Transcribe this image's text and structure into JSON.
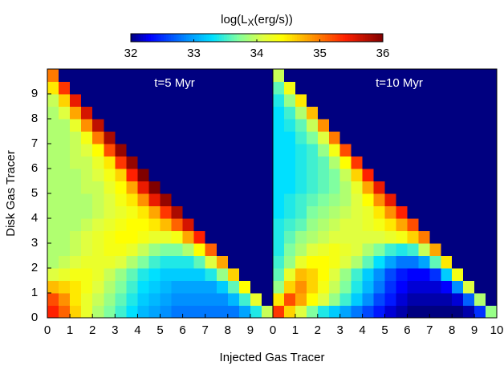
{
  "colorbar": {
    "label": [
      "log(L",
      "X",
      "(erg/s))"
    ],
    "clim": [
      32,
      36
    ],
    "ticks": [
      32,
      33,
      34,
      35,
      36
    ],
    "colorscale": [
      [
        32.0,
        "#000080"
      ],
      [
        32.3,
        "#0000ff"
      ],
      [
        32.9,
        "#0090ff"
      ],
      [
        33.3,
        "#00e0ff"
      ],
      [
        33.7,
        "#80ffa0"
      ],
      [
        34.1,
        "#e0ff40"
      ],
      [
        34.4,
        "#ffff00"
      ],
      [
        34.9,
        "#ff9000"
      ],
      [
        35.4,
        "#ff2000"
      ],
      [
        36.0,
        "#800000"
      ]
    ]
  },
  "xlabel": "Injected Gas Tracer",
  "ylabel": "Disk Gas Tracer",
  "chart_data": [
    {
      "type": "heatmap",
      "title": "t=5 Myr",
      "xlim": [
        0,
        10
      ],
      "ylim": [
        0,
        10
      ],
      "xticks": [
        0,
        1,
        2,
        3,
        4,
        5,
        6,
        7,
        8,
        9
      ],
      "yticks": [
        0,
        1,
        2,
        3,
        4,
        5,
        6,
        7,
        8,
        9
      ],
      "z": [
        [
          35.4,
          35.1,
          34.6,
          34.2,
          33.9,
          33.7,
          33.5,
          33.3,
          33.1,
          33.0,
          32.9,
          32.8,
          32.8,
          32.8,
          32.8,
          32.8,
          32.8,
          33.0,
          33.4,
          34.0
        ],
        [
          35.2,
          34.9,
          34.5,
          34.2,
          34.0,
          33.8,
          33.6,
          33.4,
          33.2,
          33.1,
          33.0,
          32.9,
          32.9,
          32.9,
          32.9,
          32.9,
          33.1,
          33.5,
          34.2,
          32
        ],
        [
          34.7,
          34.6,
          34.5,
          34.3,
          34.1,
          33.9,
          33.7,
          33.5,
          33.3,
          33.2,
          33.1,
          33.0,
          33.0,
          33.0,
          33.0,
          33.2,
          33.6,
          34.4,
          32,
          32
        ],
        [
          34.1,
          34.2,
          34.3,
          34.3,
          34.2,
          34.0,
          33.8,
          33.6,
          33.4,
          33.3,
          33.2,
          33.2,
          33.2,
          33.2,
          33.4,
          33.8,
          34.6,
          32,
          32,
          32
        ],
        [
          33.9,
          34.0,
          34.1,
          34.2,
          34.2,
          34.2,
          34.1,
          33.9,
          33.7,
          33.5,
          33.4,
          33.4,
          33.4,
          33.6,
          34.1,
          34.8,
          32,
          32,
          32,
          32
        ],
        [
          33.9,
          33.9,
          34.0,
          34.1,
          34.2,
          34.3,
          34.3,
          34.2,
          34.0,
          33.8,
          33.7,
          33.7,
          33.9,
          34.4,
          35.1,
          32,
          32,
          32,
          32,
          32
        ],
        [
          33.9,
          33.9,
          34.0,
          34.1,
          34.2,
          34.3,
          34.4,
          34.4,
          34.3,
          34.2,
          34.2,
          34.3,
          34.8,
          35.4,
          32,
          32,
          32,
          32,
          32,
          32
        ],
        [
          33.9,
          33.9,
          33.9,
          34.0,
          34.1,
          34.2,
          34.3,
          34.4,
          34.4,
          34.5,
          34.7,
          35.1,
          35.6,
          32,
          32,
          32,
          32,
          32,
          32,
          32
        ],
        [
          33.9,
          33.9,
          33.9,
          33.9,
          34.0,
          34.1,
          34.2,
          34.3,
          34.5,
          34.8,
          35.3,
          35.8,
          32,
          32,
          32,
          32,
          32,
          32,
          32,
          32
        ],
        [
          33.9,
          33.9,
          33.9,
          33.9,
          34.0,
          34.1,
          34.3,
          34.5,
          34.9,
          35.5,
          35.9,
          32,
          32,
          32,
          32,
          32,
          32,
          32,
          32,
          32
        ],
        [
          33.9,
          33.9,
          33.9,
          34.0,
          34.0,
          34.2,
          34.4,
          34.8,
          35.5,
          36.0,
          32,
          32,
          32,
          32,
          32,
          32,
          32,
          32,
          32,
          32
        ],
        [
          33.9,
          33.9,
          33.9,
          34.0,
          34.1,
          34.3,
          34.6,
          35.4,
          36.0,
          32,
          32,
          32,
          32,
          32,
          32,
          32,
          32,
          32,
          32,
          32
        ],
        [
          33.9,
          33.9,
          34.0,
          34.0,
          34.2,
          34.5,
          35.3,
          35.9,
          32,
          32,
          32,
          32,
          32,
          32,
          32,
          32,
          32,
          32,
          32,
          32
        ],
        [
          33.9,
          33.9,
          34.0,
          34.1,
          34.4,
          35.2,
          35.9,
          32,
          32,
          32,
          32,
          32,
          32,
          32,
          32,
          32,
          32,
          32,
          32,
          32
        ],
        [
          33.9,
          33.9,
          34.0,
          34.3,
          35.0,
          35.8,
          32,
          32,
          32,
          32,
          32,
          32,
          32,
          32,
          32,
          32,
          32,
          32,
          32,
          32
        ],
        [
          33.9,
          33.9,
          34.2,
          34.9,
          35.7,
          32,
          32,
          32,
          32,
          32,
          32,
          32,
          32,
          32,
          32,
          32,
          32,
          32,
          32,
          32
        ],
        [
          33.9,
          34.1,
          34.8,
          35.6,
          32,
          32,
          32,
          32,
          32,
          32,
          32,
          32,
          32,
          32,
          32,
          32,
          32,
          32,
          32,
          32
        ],
        [
          34.0,
          34.6,
          35.5,
          32,
          32,
          32,
          32,
          32,
          32,
          32,
          32,
          32,
          32,
          32,
          32,
          32,
          32,
          32,
          32,
          32
        ],
        [
          34.5,
          35.3,
          32,
          32,
          32,
          32,
          32,
          32,
          32,
          32,
          32,
          32,
          32,
          32,
          32,
          32,
          32,
          32,
          32,
          32
        ],
        [
          35.0,
          32,
          32,
          32,
          32,
          32,
          32,
          32,
          32,
          32,
          32,
          32,
          32,
          32,
          32,
          32,
          32,
          32,
          32,
          32
        ]
      ]
    },
    {
      "type": "heatmap",
      "title": "t=10 Myr",
      "xlim": [
        0,
        10
      ],
      "ylim": [
        0,
        10
      ],
      "xticks": [
        0,
        1,
        2,
        3,
        4,
        5,
        6,
        7,
        8,
        9,
        10
      ],
      "z": [
        [
          35.3,
          34.6,
          34.1,
          33.7,
          33.4,
          33.2,
          33.0,
          32.8,
          32.6,
          32.4,
          32.2,
          32.1,
          32.0,
          32.0,
          32.0,
          32.0,
          32.0,
          32.1,
          32.5,
          33.8
        ],
        [
          34.5,
          35.2,
          34.8,
          34.4,
          34.1,
          33.8,
          33.5,
          33.2,
          32.9,
          32.6,
          32.4,
          32.2,
          32.1,
          32.1,
          32.1,
          32.1,
          32.2,
          32.7,
          33.9,
          32
        ],
        [
          33.8,
          34.6,
          34.9,
          34.6,
          34.3,
          34.0,
          33.7,
          33.4,
          33.1,
          32.8,
          32.5,
          32.3,
          32.2,
          32.2,
          32.2,
          32.3,
          32.9,
          34.1,
          32,
          32
        ],
        [
          33.6,
          34.2,
          34.7,
          34.6,
          34.4,
          34.1,
          33.8,
          33.5,
          33.2,
          32.9,
          32.6,
          32.4,
          32.3,
          32.3,
          32.5,
          33.2,
          34.3,
          32,
          32,
          32
        ],
        [
          33.5,
          33.8,
          34.2,
          34.4,
          34.4,
          34.3,
          34.1,
          33.9,
          33.6,
          33.3,
          33.0,
          32.8,
          32.8,
          33.0,
          33.6,
          34.5,
          32,
          32,
          32,
          32
        ],
        [
          33.4,
          33.7,
          33.9,
          34.1,
          34.2,
          34.3,
          34.2,
          34.1,
          33.9,
          33.7,
          33.5,
          33.4,
          33.5,
          34.0,
          34.8,
          32,
          32,
          32,
          32,
          32
        ],
        [
          33.4,
          33.6,
          33.8,
          33.9,
          34.0,
          34.1,
          34.1,
          34.1,
          34.1,
          34.1,
          34.2,
          34.3,
          34.6,
          35.0,
          32,
          32,
          32,
          32,
          32,
          32
        ],
        [
          33.4,
          33.5,
          33.6,
          33.8,
          33.9,
          34.0,
          34.1,
          34.1,
          34.2,
          34.3,
          34.5,
          34.8,
          35.2,
          32,
          32,
          32,
          32,
          32,
          32,
          32
        ],
        [
          33.3,
          33.4,
          33.5,
          33.7,
          33.8,
          33.9,
          34.0,
          34.1,
          34.2,
          34.5,
          34.9,
          35.4,
          32,
          32,
          32,
          32,
          32,
          32,
          32,
          32
        ],
        [
          33.3,
          33.4,
          33.5,
          33.6,
          33.7,
          33.8,
          33.9,
          34.1,
          34.4,
          34.9,
          35.5,
          32,
          32,
          32,
          32,
          32,
          32,
          32,
          32,
          32
        ],
        [
          33.3,
          33.3,
          33.4,
          33.5,
          33.6,
          33.7,
          33.9,
          34.2,
          34.8,
          35.5,
          32,
          32,
          32,
          32,
          32,
          32,
          32,
          32,
          32,
          32
        ],
        [
          33.3,
          33.3,
          33.4,
          33.5,
          33.6,
          33.7,
          34.0,
          34.6,
          35.4,
          32,
          32,
          32,
          32,
          32,
          32,
          32,
          32,
          32,
          32,
          32
        ],
        [
          33.3,
          33.3,
          33.4,
          33.5,
          33.6,
          33.9,
          34.4,
          35.3,
          32,
          32,
          32,
          32,
          32,
          32,
          32,
          32,
          32,
          32,
          32,
          32
        ],
        [
          33.3,
          33.3,
          33.4,
          33.5,
          33.8,
          34.3,
          35.2,
          32,
          32,
          32,
          32,
          32,
          32,
          32,
          32,
          32,
          32,
          32,
          32,
          32
        ],
        [
          33.3,
          33.3,
          33.5,
          33.7,
          34.1,
          35.0,
          32,
          32,
          32,
          32,
          32,
          32,
          32,
          32,
          32,
          32,
          32,
          32,
          32,
          32
        ],
        [
          33.3,
          33.4,
          33.6,
          34.0,
          34.9,
          32,
          32,
          32,
          32,
          32,
          32,
          32,
          32,
          32,
          32,
          32,
          32,
          32,
          32,
          32
        ],
        [
          33.3,
          33.5,
          33.9,
          34.7,
          32,
          32,
          32,
          32,
          32,
          32,
          32,
          32,
          32,
          32,
          32,
          32,
          32,
          32,
          32,
          32
        ],
        [
          33.4,
          33.8,
          34.5,
          32,
          32,
          32,
          32,
          32,
          32,
          32,
          32,
          32,
          32,
          32,
          32,
          32,
          32,
          32,
          32,
          32
        ],
        [
          33.6,
          34.3,
          32,
          32,
          32,
          32,
          32,
          32,
          32,
          32,
          32,
          32,
          32,
          32,
          32,
          32,
          32,
          32,
          32,
          32
        ],
        [
          34.0,
          32,
          32,
          32,
          32,
          32,
          32,
          32,
          32,
          32,
          32,
          32,
          32,
          32,
          32,
          32,
          32,
          32,
          32,
          32
        ]
      ]
    }
  ]
}
